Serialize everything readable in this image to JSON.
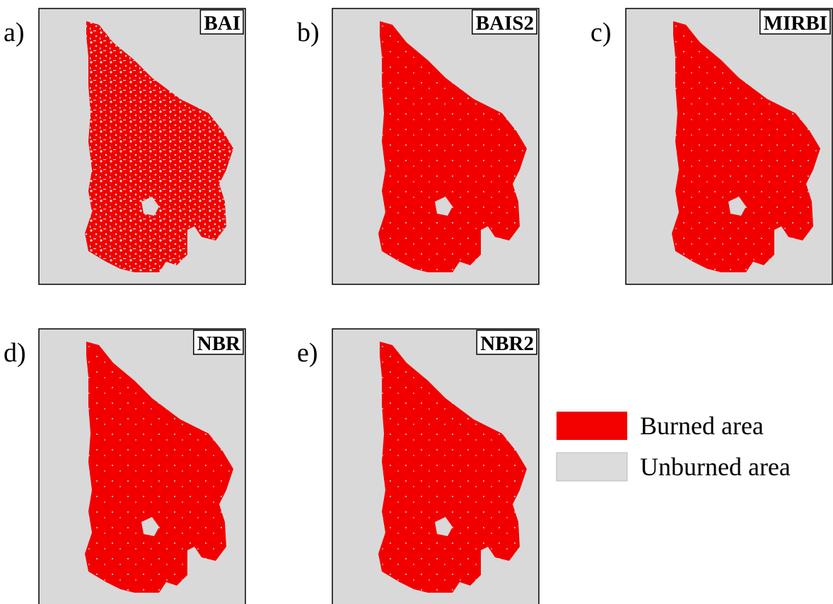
{
  "panels": [
    {
      "letter": "a)",
      "title": "BAI"
    },
    {
      "letter": "b)",
      "title": "BAIS2"
    },
    {
      "letter": "c)",
      "title": "MIRBI"
    },
    {
      "letter": "d)",
      "title": "NBR"
    },
    {
      "letter": "e)",
      "title": "NBR2"
    }
  ],
  "legend": [
    {
      "label": "Burned area"
    },
    {
      "label": "Unburned area"
    }
  ]
}
